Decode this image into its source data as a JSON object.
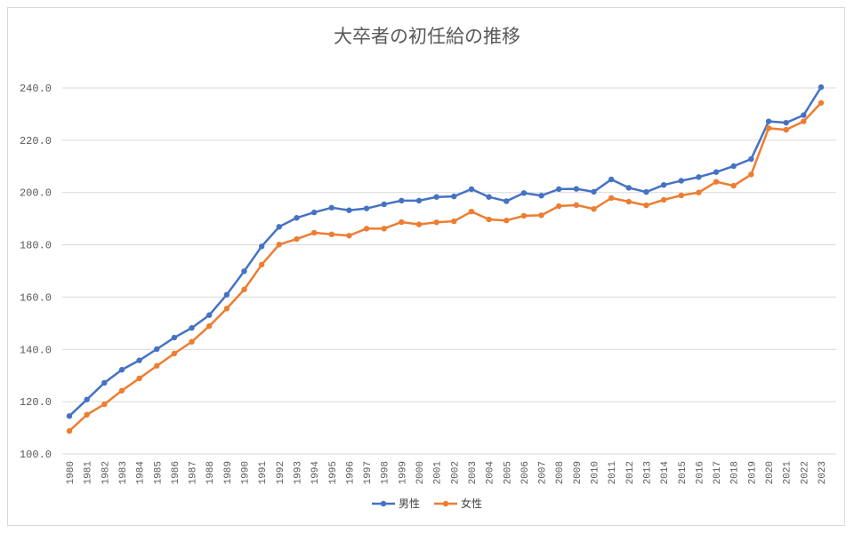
{
  "chart_data": {
    "type": "line",
    "title": "大卒者の初任給の推移",
    "xlabel": "",
    "ylabel": "",
    "ylim": [
      100,
      240
    ],
    "yticks": [
      "100.0",
      "120.0",
      "140.0",
      "160.0",
      "180.0",
      "200.0",
      "220.0",
      "240.0"
    ],
    "grid": true,
    "legend_position": "bottom",
    "x": [
      "1980",
      "1981",
      "1982",
      "1983",
      "1984",
      "1985",
      "1986",
      "1987",
      "1988",
      "1989",
      "1990",
      "1991",
      "1992",
      "1993",
      "1994",
      "1995",
      "1996",
      "1997",
      "1998",
      "1999",
      "2000",
      "2001",
      "2002",
      "2003",
      "2004",
      "2005",
      "2006",
      "2007",
      "2008",
      "2009",
      "2010",
      "2011",
      "2012",
      "2013",
      "2014",
      "2015",
      "2016",
      "2017",
      "2018",
      "2019",
      "2020",
      "2021",
      "2022",
      "2023"
    ],
    "series": [
      {
        "name": "男性",
        "color": "#4472c4",
        "values": [
          114.5,
          120.8,
          127.2,
          132.2,
          135.8,
          140.1,
          144.5,
          148.2,
          153.1,
          160.9,
          169.9,
          179.4,
          186.9,
          190.3,
          192.4,
          194.2,
          193.2,
          193.9,
          195.5,
          196.9,
          196.9,
          198.3,
          198.5,
          201.3,
          198.3,
          196.7,
          199.8,
          198.8,
          201.3,
          201.4,
          200.3,
          205.0,
          201.8,
          200.2,
          202.9,
          204.5,
          205.9,
          207.8,
          210.1,
          212.8,
          227.2,
          226.7,
          229.6,
          240.3
        ]
      },
      {
        "name": "女性",
        "color": "#ed7d31",
        "values": [
          108.8,
          115.0,
          119.0,
          124.2,
          128.9,
          133.7,
          138.4,
          142.9,
          148.9,
          155.6,
          162.9,
          172.4,
          180.1,
          182.2,
          184.6,
          184.0,
          183.5,
          186.2,
          186.2,
          188.7,
          187.8,
          188.6,
          189.0,
          192.7,
          189.7,
          189.3,
          191.1,
          191.3,
          194.8,
          195.2,
          193.7,
          197.9,
          196.5,
          195.1,
          197.2,
          198.9,
          200.0,
          204.1,
          202.6,
          206.9,
          224.6,
          224.0,
          227.2,
          234.3
        ]
      }
    ]
  }
}
